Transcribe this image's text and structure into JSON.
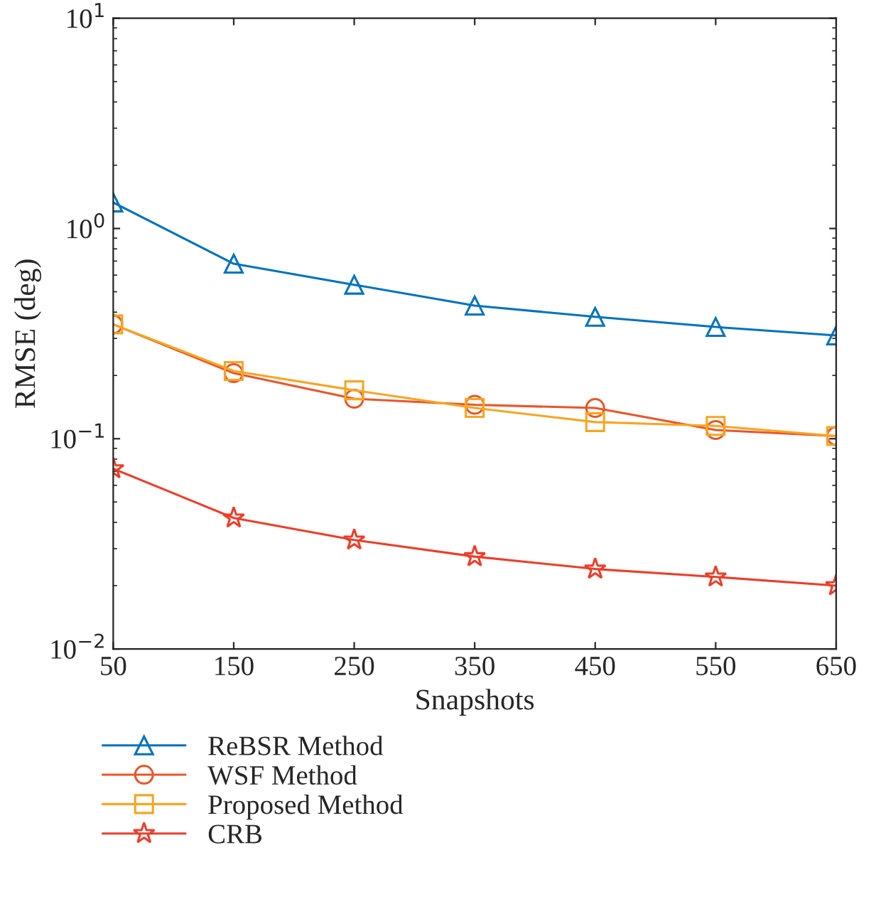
{
  "chart_data": {
    "type": "line",
    "xlabel": "Snapshots",
    "ylabel": "RMSE (deg)",
    "x": [
      50,
      150,
      250,
      350,
      450,
      550,
      650
    ],
    "series": [
      {
        "name": "ReBSR Method",
        "color": "#0072bd",
        "marker": "triangle",
        "values": [
          1.33,
          0.68,
          0.54,
          0.43,
          0.38,
          0.34,
          0.31
        ]
      },
      {
        "name": "WSF Method",
        "color": "#e8562a",
        "marker": "circle",
        "values": [
          0.35,
          0.205,
          0.155,
          0.145,
          0.14,
          0.11,
          0.103
        ]
      },
      {
        "name": "Proposed Method",
        "color": "#f5a623",
        "marker": "square",
        "values": [
          0.35,
          0.21,
          0.17,
          0.14,
          0.12,
          0.115,
          0.103
        ]
      },
      {
        "name": "CRB",
        "color": "#ea3f2a",
        "marker": "star",
        "values": [
          0.072,
          0.042,
          0.033,
          0.0275,
          0.024,
          0.022,
          0.02
        ]
      }
    ],
    "log": "y",
    "xlim": [
      50,
      650
    ],
    "xticks": [
      50,
      150,
      250,
      350,
      450,
      550,
      650
    ],
    "ylim": [
      0.01,
      10
    ],
    "yticks": [
      {
        "value": 0.01,
        "label": "10$^{−2}$"
      },
      {
        "value": 0.1,
        "label": "10$^{−1}$"
      },
      {
        "value": 1,
        "label": "10$^{0}$"
      },
      {
        "value": 10,
        "label": "10$^{1}$"
      }
    ],
    "grid": false,
    "legend": "bottom",
    "line_style": "solid"
  }
}
